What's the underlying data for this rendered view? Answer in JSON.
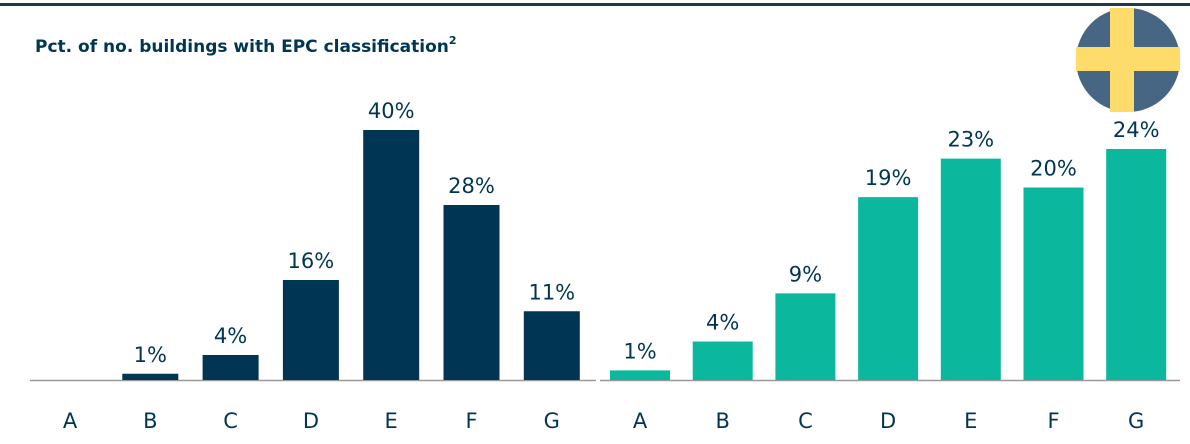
{
  "chart_data": [
    {
      "type": "bar",
      "title": "Pct. of no. buildings with EPC classification",
      "title_superscript": "2",
      "categories": [
        "A",
        "B",
        "C",
        "D",
        "E",
        "F",
        "G"
      ],
      "values": [
        0,
        1,
        4,
        16,
        40,
        28,
        11
      ],
      "value_labels": [
        null,
        "1%",
        "4%",
        "16%",
        "40%",
        "28%",
        "11%"
      ],
      "color": "#003654",
      "ylim": [
        0,
        40
      ]
    },
    {
      "type": "bar",
      "categories": [
        "A",
        "B",
        "C",
        "D",
        "E",
        "F",
        "G"
      ],
      "values": [
        1,
        4,
        9,
        19,
        23,
        20,
        24
      ],
      "value_labels": [
        "1%",
        "4%",
        "9%",
        "19%",
        "23%",
        "20%",
        "24%"
      ],
      "color": "#0cb89d",
      "ylim": [
        0,
        24
      ]
    }
  ]
}
